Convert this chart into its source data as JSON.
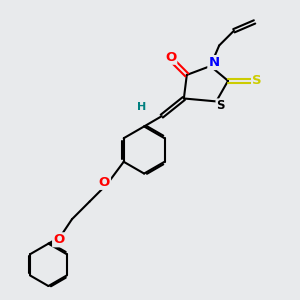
{
  "bg_color": "#e8eaec",
  "bond_color": "#000000",
  "atom_colors": {
    "O": "#ff0000",
    "N": "#0000ff",
    "S_thioxo": "#cccc00",
    "S_ring": "#000000",
    "H": "#008080",
    "C": "#000000"
  },
  "line_width": 1.5,
  "figsize": [
    3.0,
    3.0
  ],
  "dpi": 100
}
